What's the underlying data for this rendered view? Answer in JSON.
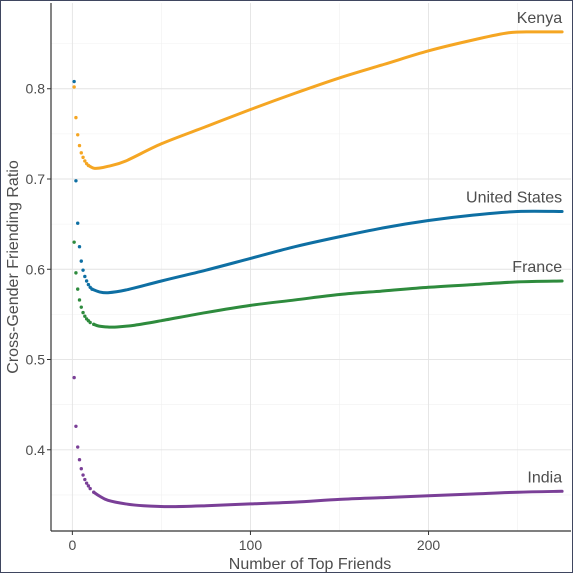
{
  "chart_data": {
    "type": "line",
    "title": "",
    "xlabel": "Number of Top Friends",
    "ylabel": "Cross-Gender Friending Ratio",
    "xlim": [
      -12,
      280
    ],
    "ylim": [
      0.31,
      0.895
    ],
    "x_ticks": [
      0,
      100,
      200
    ],
    "y_ticks": [
      0.4,
      0.5,
      0.6,
      0.7,
      0.8
    ],
    "x_tick_labels": [
      "0",
      "100",
      "200"
    ],
    "y_tick_labels": [
      "0.4",
      "0.5",
      "0.6",
      "0.7",
      "0.8"
    ],
    "grid": true,
    "legend": "direct labels at line ends",
    "note": "Points at small x are drawn as dots; remaining values drawn as a continuous line.",
    "series": [
      {
        "name": "Kenya",
        "color": "#F5A623",
        "dots": [
          [
            1,
            0.802
          ],
          [
            2,
            0.768
          ],
          [
            3,
            0.749
          ],
          [
            4,
            0.737
          ],
          [
            5,
            0.729
          ],
          [
            6,
            0.724
          ],
          [
            7,
            0.72
          ],
          [
            8,
            0.717
          ],
          [
            9,
            0.715
          ]
        ],
        "line": [
          [
            9,
            0.715
          ],
          [
            12,
            0.712
          ],
          [
            15,
            0.712
          ],
          [
            20,
            0.714
          ],
          [
            30,
            0.72
          ],
          [
            50,
            0.739
          ],
          [
            75,
            0.758
          ],
          [
            100,
            0.777
          ],
          [
            125,
            0.795
          ],
          [
            150,
            0.812
          ],
          [
            175,
            0.827
          ],
          [
            200,
            0.842
          ],
          [
            225,
            0.854
          ],
          [
            245,
            0.862
          ],
          [
            260,
            0.863
          ],
          [
            275,
            0.863
          ]
        ]
      },
      {
        "name": "United States",
        "color": "#0E6FA3",
        "dots": [
          [
            1,
            0.808
          ],
          [
            2,
            0.698
          ],
          [
            3,
            0.651
          ],
          [
            4,
            0.625
          ],
          [
            5,
            0.609
          ],
          [
            6,
            0.599
          ],
          [
            7,
            0.592
          ],
          [
            8,
            0.587
          ],
          [
            9,
            0.583
          ],
          [
            10,
            0.58
          ],
          [
            11,
            0.578
          ]
        ],
        "line": [
          [
            11,
            0.578
          ],
          [
            15,
            0.575
          ],
          [
            20,
            0.574
          ],
          [
            30,
            0.577
          ],
          [
            50,
            0.587
          ],
          [
            75,
            0.599
          ],
          [
            100,
            0.612
          ],
          [
            125,
            0.625
          ],
          [
            150,
            0.636
          ],
          [
            175,
            0.646
          ],
          [
            200,
            0.654
          ],
          [
            225,
            0.66
          ],
          [
            250,
            0.664
          ],
          [
            275,
            0.664
          ]
        ]
      },
      {
        "name": "France",
        "color": "#2E8B3D",
        "dots": [
          [
            1,
            0.63
          ],
          [
            2,
            0.596
          ],
          [
            3,
            0.578
          ],
          [
            4,
            0.566
          ],
          [
            5,
            0.558
          ],
          [
            6,
            0.552
          ],
          [
            7,
            0.548
          ],
          [
            8,
            0.545
          ],
          [
            9,
            0.543
          ],
          [
            10,
            0.541
          ],
          [
            12,
            0.539
          ]
        ],
        "line": [
          [
            12,
            0.539
          ],
          [
            15,
            0.537
          ],
          [
            20,
            0.536
          ],
          [
            25,
            0.536
          ],
          [
            35,
            0.538
          ],
          [
            50,
            0.543
          ],
          [
            75,
            0.552
          ],
          [
            100,
            0.56
          ],
          [
            125,
            0.566
          ],
          [
            150,
            0.572
          ],
          [
            175,
            0.576
          ],
          [
            200,
            0.58
          ],
          [
            225,
            0.583
          ],
          [
            250,
            0.586
          ],
          [
            275,
            0.587
          ]
        ]
      },
      {
        "name": "India",
        "color": "#7A3F97",
        "dots": [
          [
            1,
            0.48
          ],
          [
            2,
            0.426
          ],
          [
            3,
            0.403
          ],
          [
            4,
            0.389
          ],
          [
            5,
            0.379
          ],
          [
            6,
            0.372
          ],
          [
            7,
            0.367
          ],
          [
            8,
            0.363
          ],
          [
            9,
            0.36
          ],
          [
            10,
            0.357
          ],
          [
            12,
            0.353
          ]
        ],
        "line": [
          [
            12,
            0.353
          ],
          [
            15,
            0.349
          ],
          [
            20,
            0.344
          ],
          [
            30,
            0.34
          ],
          [
            40,
            0.338
          ],
          [
            55,
            0.337
          ],
          [
            75,
            0.338
          ],
          [
            100,
            0.34
          ],
          [
            125,
            0.342
          ],
          [
            150,
            0.345
          ],
          [
            175,
            0.347
          ],
          [
            200,
            0.349
          ],
          [
            225,
            0.351
          ],
          [
            250,
            0.353
          ],
          [
            275,
            0.354
          ]
        ]
      }
    ]
  }
}
